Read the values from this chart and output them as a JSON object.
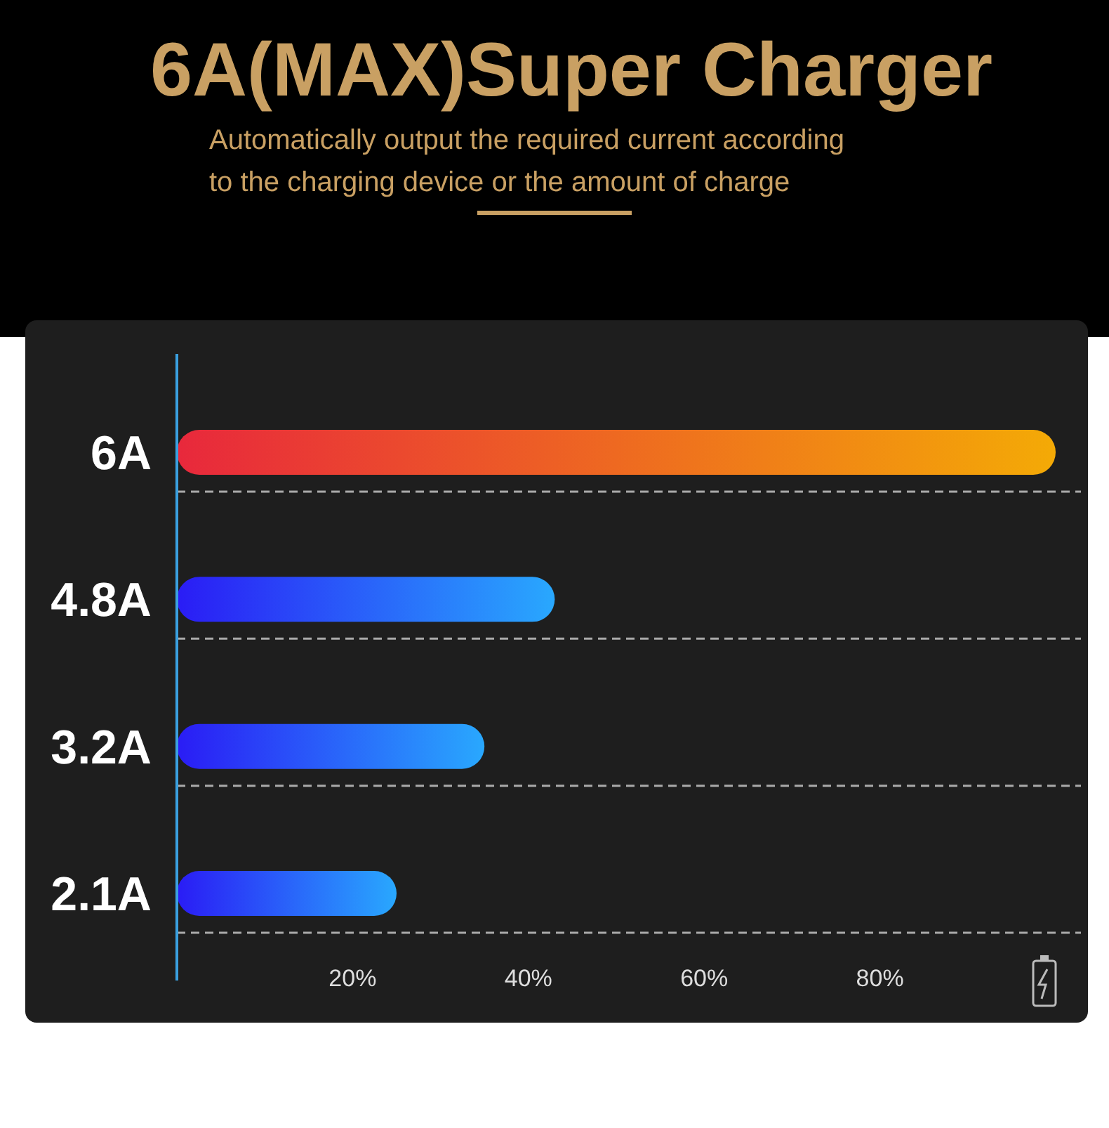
{
  "chart_data": {
    "type": "bar",
    "orientation": "horizontal",
    "title": "6A(MAX)Super Charger",
    "subtitle": "Automatically output the required current according to the charging device or the amount of charge",
    "categories": [
      "6A",
      "4.8A",
      "3.2A",
      "2.1A"
    ],
    "values": [
      100,
      43,
      35,
      25
    ],
    "colors": [
      "#e8283c",
      "#2a1cf5",
      "#2a1cf5",
      "#2a1cf5"
    ],
    "xlim": [
      0,
      100
    ],
    "xticks": [
      {
        "value": 20,
        "label": "20%"
      },
      {
        "value": 40,
        "label": "40%"
      },
      {
        "value": 60,
        "label": "60%"
      },
      {
        "value": 80,
        "label": "80%"
      }
    ]
  }
}
